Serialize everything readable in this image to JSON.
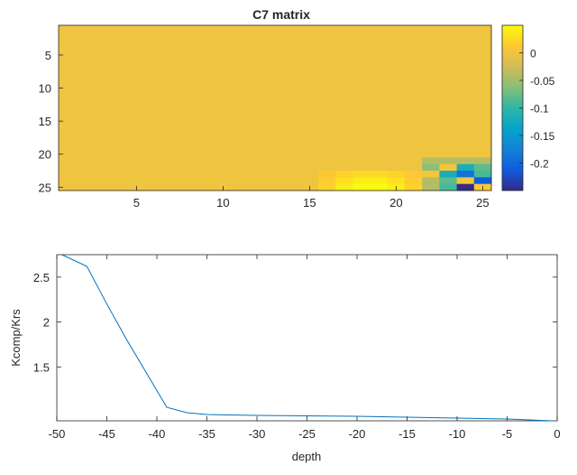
{
  "chart_data": [
    {
      "type": "heatmap",
      "title": "C7 matrix",
      "xlabel": "",
      "ylabel": "",
      "xlim": [
        0.5,
        25.5
      ],
      "ylim": [
        0.5,
        25.5
      ],
      "x_ticks": [
        5,
        10,
        15,
        20,
        25
      ],
      "y_ticks": [
        5,
        10,
        15,
        20,
        25
      ],
      "y_reversed": true,
      "rows": 25,
      "cols": 25,
      "colormap": "parula",
      "clim": [
        -0.25,
        0.05
      ],
      "colorbar_ticks": [
        0,
        -0.05,
        -0.1,
        -0.15,
        -0.2
      ],
      "colorbar_labels": [
        "0",
        "-0.05",
        "-0.1",
        "-0.15",
        "-0.2"
      ],
      "base_value": 0,
      "special_cells": [
        {
          "row": 21,
          "col": 22,
          "value": -0.04
        },
        {
          "row": 21,
          "col": 23,
          "value": -0.04
        },
        {
          "row": 21,
          "col": 24,
          "value": -0.04
        },
        {
          "row": 21,
          "col": 25,
          "value": -0.04
        },
        {
          "row": 22,
          "col": 22,
          "value": -0.06
        },
        {
          "row": 22,
          "col": 23,
          "value": 0.005
        },
        {
          "row": 22,
          "col": 24,
          "value": -0.12
        },
        {
          "row": 22,
          "col": 25,
          "value": -0.08
        },
        {
          "row": 23,
          "col": 22,
          "value": 0.005
        },
        {
          "row": 23,
          "col": 23,
          "value": -0.12
        },
        {
          "row": 23,
          "col": 24,
          "value": -0.19
        },
        {
          "row": 23,
          "col": 25,
          "value": -0.09
        },
        {
          "row": 24,
          "col": 22,
          "value": -0.04
        },
        {
          "row": 24,
          "col": 23,
          "value": -0.08
        },
        {
          "row": 24,
          "col": 24,
          "value": 0.005
        },
        {
          "row": 24,
          "col": 25,
          "value": -0.21
        },
        {
          "row": 25,
          "col": 22,
          "value": -0.04
        },
        {
          "row": 25,
          "col": 23,
          "value": -0.09
        },
        {
          "row": 25,
          "col": 24,
          "value": -0.25
        },
        {
          "row": 25,
          "col": 25,
          "value": 0.01
        },
        {
          "row": 23,
          "col": 16,
          "value": 0.01
        },
        {
          "row": 23,
          "col": 17,
          "value": 0.02
        },
        {
          "row": 23,
          "col": 18,
          "value": 0.025
        },
        {
          "row": 23,
          "col": 19,
          "value": 0.025
        },
        {
          "row": 23,
          "col": 20,
          "value": 0.02
        },
        {
          "row": 23,
          "col": 21,
          "value": 0.012
        },
        {
          "row": 24,
          "col": 16,
          "value": 0.015
        },
        {
          "row": 24,
          "col": 17,
          "value": 0.03
        },
        {
          "row": 24,
          "col": 18,
          "value": 0.04
        },
        {
          "row": 24,
          "col": 19,
          "value": 0.04
        },
        {
          "row": 24,
          "col": 20,
          "value": 0.03
        },
        {
          "row": 24,
          "col": 21,
          "value": 0.015
        },
        {
          "row": 25,
          "col": 16,
          "value": 0.02
        },
        {
          "row": 25,
          "col": 17,
          "value": 0.04
        },
        {
          "row": 25,
          "col": 18,
          "value": 0.05
        },
        {
          "row": 25,
          "col": 19,
          "value": 0.05
        },
        {
          "row": 25,
          "col": 20,
          "value": 0.04
        },
        {
          "row": 25,
          "col": 21,
          "value": 0.02
        }
      ]
    },
    {
      "type": "line",
      "title": "",
      "xlabel": "depth",
      "ylabel": "Kcomp/Krs",
      "xlim": [
        -50,
        0
      ],
      "ylim": [
        0.9,
        2.75
      ],
      "x_ticks": [
        -50,
        -45,
        -40,
        -35,
        -30,
        -25,
        -20,
        -15,
        -10,
        -5,
        0
      ],
      "y_ticks": [
        1.5,
        2,
        2.5
      ],
      "x": [
        -49.5,
        -47,
        -45,
        -43,
        -39,
        -37,
        -35,
        -30,
        -20,
        -10,
        -5,
        -0.5
      ],
      "y": [
        2.75,
        2.62,
        2.2,
        1.8,
        1.05,
        0.99,
        0.97,
        0.96,
        0.95,
        0.93,
        0.92,
        0.9
      ],
      "color": "#0072BD",
      "grid": false
    }
  ]
}
